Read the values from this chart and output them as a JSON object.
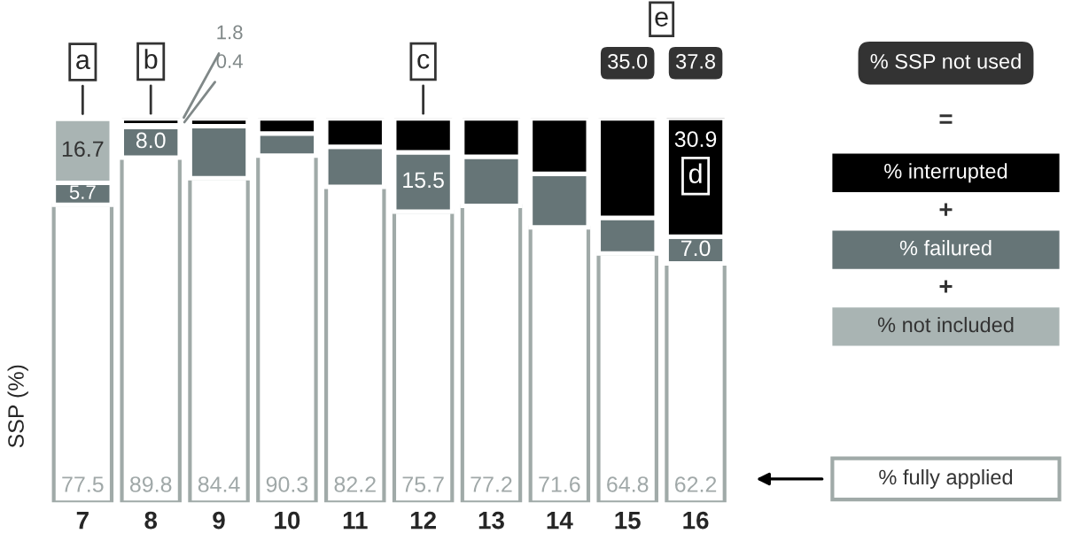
{
  "chart_data": {
    "type": "bar",
    "stacked": true,
    "ylabel": "SSP (%)",
    "legend": "right",
    "tick_labels": "x",
    "categories": [
      "7",
      "8",
      "9",
      "10",
      "11",
      "12",
      "13",
      "14",
      "15",
      "16"
    ],
    "series": [
      {
        "name": "% fully applied",
        "color": "#ffffff",
        "values": [
          77.5,
          89.8,
          84.4,
          90.3,
          82.2,
          75.7,
          77.2,
          71.6,
          64.8,
          62.2
        ],
        "value_labels": [
          "77.5",
          "89.8",
          "84.4",
          "90.3",
          "82.2",
          "75.7",
          "77.2",
          "71.6",
          "64.8",
          "62.2"
        ]
      },
      {
        "name": "% failured",
        "color": "#667577",
        "values": [
          5.7,
          8.0,
          13.6,
          5.8,
          10.4,
          15.5,
          12.8,
          14.0,
          9.3,
          7.0
        ],
        "value_labels": [
          "5.7",
          "8.0",
          null,
          null,
          null,
          "15.5",
          null,
          null,
          null,
          "7.0"
        ]
      },
      {
        "name": "% not included",
        "color": "#a9b4b3",
        "values": [
          16.7,
          0.4,
          null,
          null,
          null,
          null,
          null,
          null,
          null,
          null
        ],
        "value_labels": [
          "16.7",
          "0.4",
          null,
          null,
          null,
          null,
          null,
          null,
          null,
          null
        ]
      },
      {
        "name": "% interrupted",
        "color": "#000000",
        "values": [
          null,
          1.8,
          2.0,
          3.9,
          7.4,
          8.8,
          10.0,
          14.4,
          25.9,
          30.9
        ],
        "value_labels": [
          null,
          "1.8",
          null,
          null,
          null,
          null,
          null,
          null,
          null,
          "30.9"
        ]
      }
    ],
    "annotations": [
      {
        "text": "a",
        "x": "7",
        "y": 99.9
      },
      {
        "text": "b",
        "x": "8",
        "y": 100
      },
      {
        "text": "c",
        "x": "12",
        "y": 100
      },
      {
        "text": "d",
        "x": "16",
        "y": 85
      },
      "35.0",
      "37.8",
      "e",
      "% SSP not used",
      "=",
      "+",
      "+"
    ]
  }
}
